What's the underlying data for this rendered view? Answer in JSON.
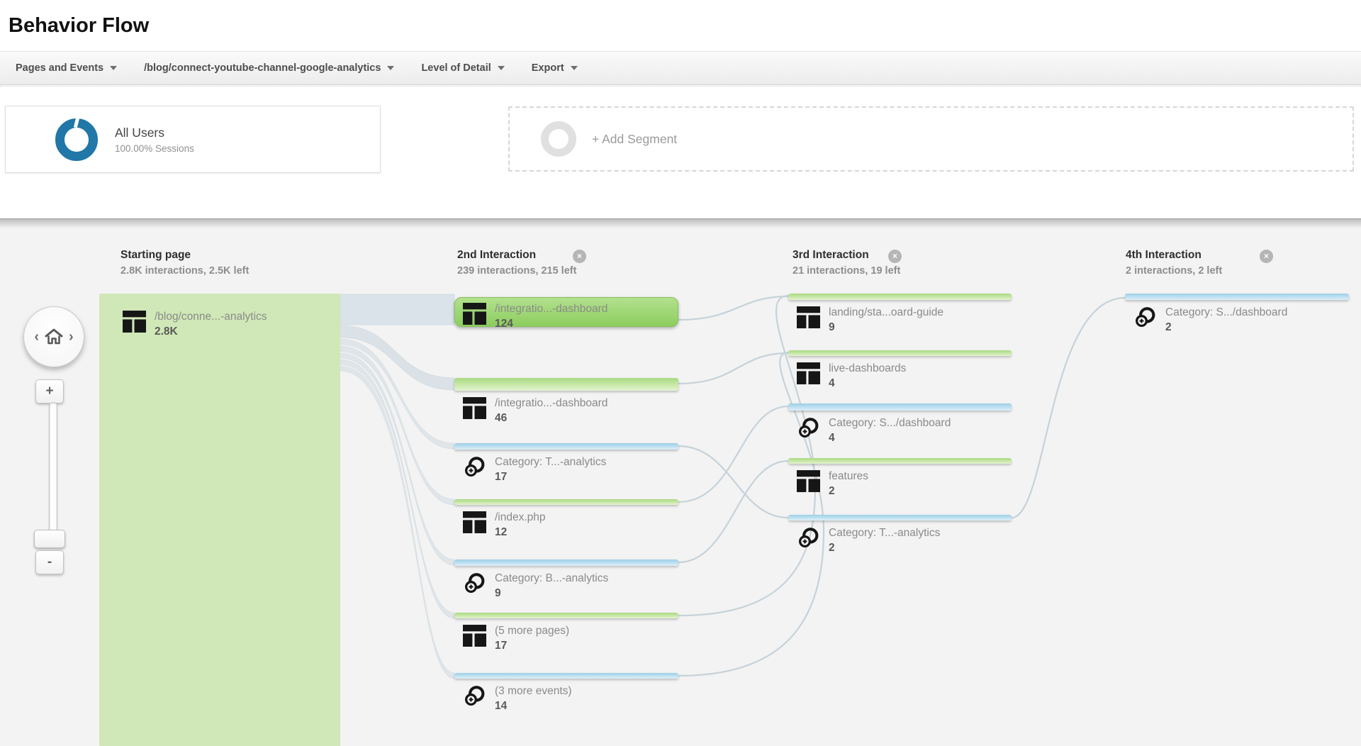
{
  "page": {
    "title": "Behavior Flow"
  },
  "toolbar": {
    "dimension_dropdown": "Pages and Events",
    "starting_page_dropdown": "/blog/connect-youtube-channel-google-analytics",
    "detail_dropdown": "Level of Detail",
    "export_dropdown": "Export"
  },
  "segments": {
    "all_users": {
      "name": "All Users",
      "detail": "100.00% Sessions"
    },
    "add_segment_label": "+ Add Segment"
  },
  "flow": {
    "columns": [
      {
        "title": "Starting page",
        "subtitle": "2.8K interactions, 2.5K left",
        "closable": false,
        "nodes": [
          {
            "label": "/blog/conne...-analytics",
            "count": "2.8K",
            "type": "page"
          }
        ]
      },
      {
        "title": "2nd Interaction",
        "subtitle": "239 interactions, 215 left",
        "closable": true,
        "nodes": [
          {
            "label": "/integratio...-dashboard",
            "count": "124",
            "type": "page"
          },
          {
            "label": "/integratio...-dashboard",
            "count": "46",
            "type": "page"
          },
          {
            "label": "Category: T...-analytics",
            "count": "17",
            "type": "event"
          },
          {
            "label": "/index.php",
            "count": "12",
            "type": "page"
          },
          {
            "label": "Category: B...-analytics",
            "count": "9",
            "type": "event"
          },
          {
            "label": "(5 more pages)",
            "count": "17",
            "type": "page"
          },
          {
            "label": "(3 more events)",
            "count": "14",
            "type": "event"
          }
        ]
      },
      {
        "title": "3rd Interaction",
        "subtitle": "21 interactions, 19 left",
        "closable": true,
        "nodes": [
          {
            "label": "landing/sta...oard-guide",
            "count": "9",
            "type": "page"
          },
          {
            "label": "live-dashboards",
            "count": "4",
            "type": "page"
          },
          {
            "label": "Category: S.../dashboard",
            "count": "4",
            "type": "event"
          },
          {
            "label": "features",
            "count": "2",
            "type": "page"
          },
          {
            "label": "Category: T...-analytics",
            "count": "2",
            "type": "event"
          }
        ]
      },
      {
        "title": "4th Interaction",
        "subtitle": "2 interactions, 2 left",
        "closable": true,
        "nodes": [
          {
            "label": "Category: S.../dashboard",
            "count": "2",
            "type": "event"
          }
        ]
      }
    ]
  },
  "controls": {
    "zoom_in": "+",
    "zoom_out": "-",
    "pan_left": "‹",
    "pan_right": "›"
  },
  "icons": {
    "close_glyph": "×",
    "page_icon": "page-layout",
    "event_icon": "event-circle-plus",
    "home_icon": "home"
  },
  "colors": {
    "page_node_green": "#b0dd8b",
    "event_node_blue": "#a3d3e9",
    "highlight_green": "#8ccd5e",
    "origin_green": "#d0e8b7",
    "segment_donut_blue": "#2077a8",
    "connection_gray": "#d7e0e6"
  }
}
